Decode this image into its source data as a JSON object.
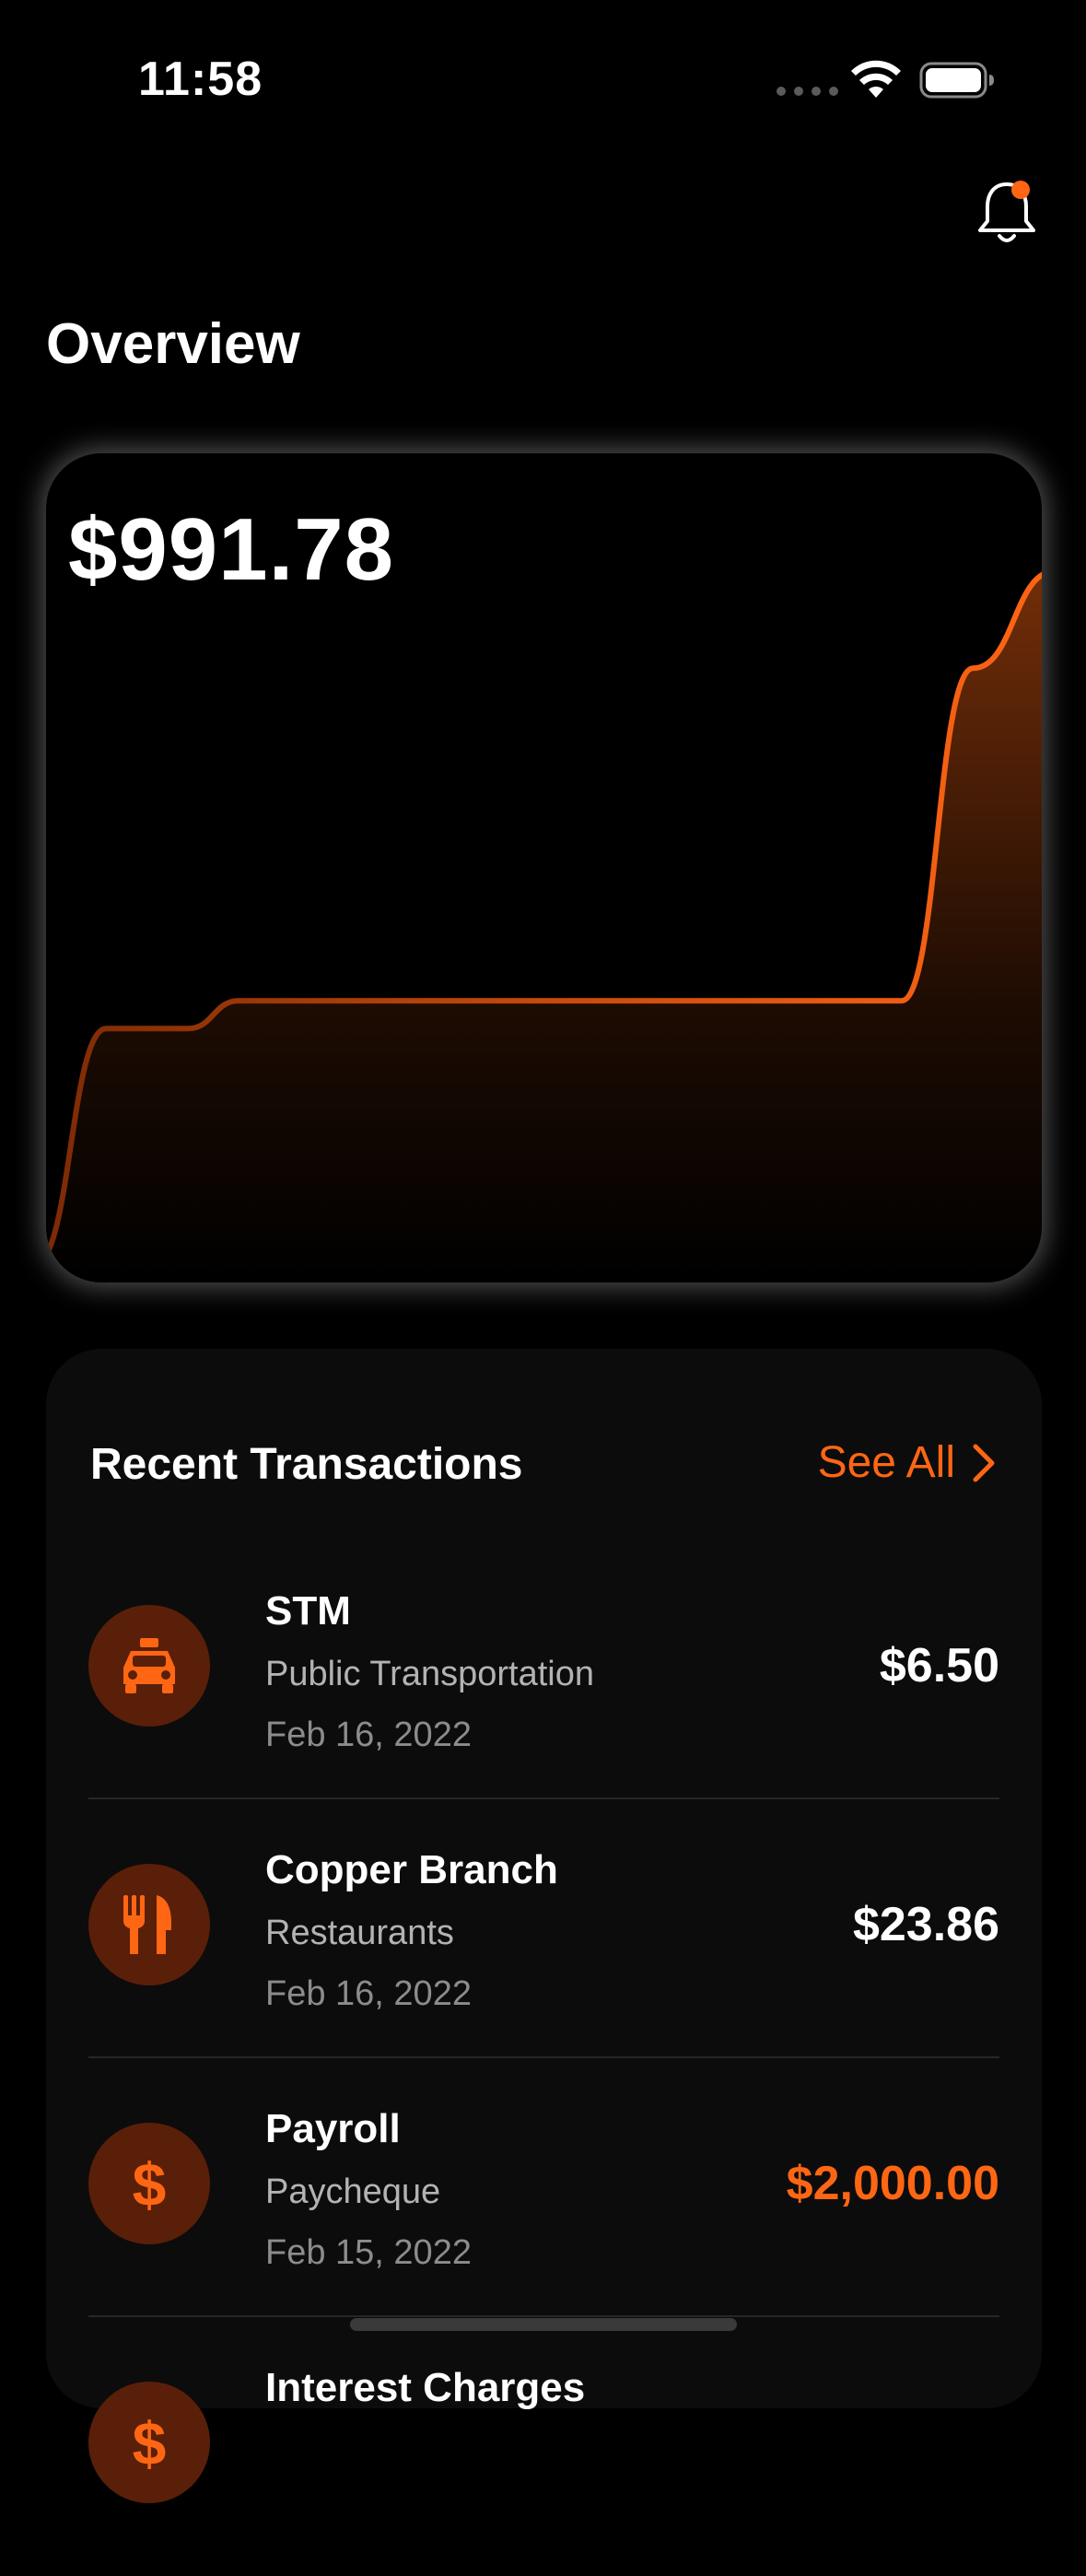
{
  "status_bar": {
    "time": "11:58"
  },
  "header": {
    "title": "Overview"
  },
  "balance": {
    "amount": "$991.78"
  },
  "chart_data": {
    "type": "area",
    "title": "",
    "xlabel": "",
    "ylabel": "",
    "x": [
      0,
      1,
      2,
      3,
      4,
      5,
      6,
      7,
      8
    ],
    "values": [
      0,
      34,
      34,
      38,
      38,
      38,
      38,
      86,
      100
    ],
    "line_color": "#ff6614"
  },
  "transactions": {
    "title": "Recent Transactions",
    "see_all_label": "See All",
    "items": [
      {
        "name": "STM",
        "category": "Public Transportation",
        "date": "Feb 16, 2022",
        "amount": "$6.50",
        "icon": "taxi-icon",
        "income": false
      },
      {
        "name": "Copper Branch",
        "category": "Restaurants",
        "date": "Feb 16, 2022",
        "amount": "$23.86",
        "icon": "fork-knife-icon",
        "income": false
      },
      {
        "name": "Payroll",
        "category": "Paycheque",
        "date": "Feb 15, 2022",
        "amount": "$2,000.00",
        "icon": "dollar-icon",
        "income": true
      },
      {
        "name": "Interest Charges",
        "category": "",
        "date": "",
        "amount": "",
        "icon": "dollar-icon",
        "income": false
      }
    ]
  },
  "colors": {
    "accent": "#ff6614",
    "icon_bg": "#5a1f08",
    "card_bg": "#0c0c0c"
  }
}
